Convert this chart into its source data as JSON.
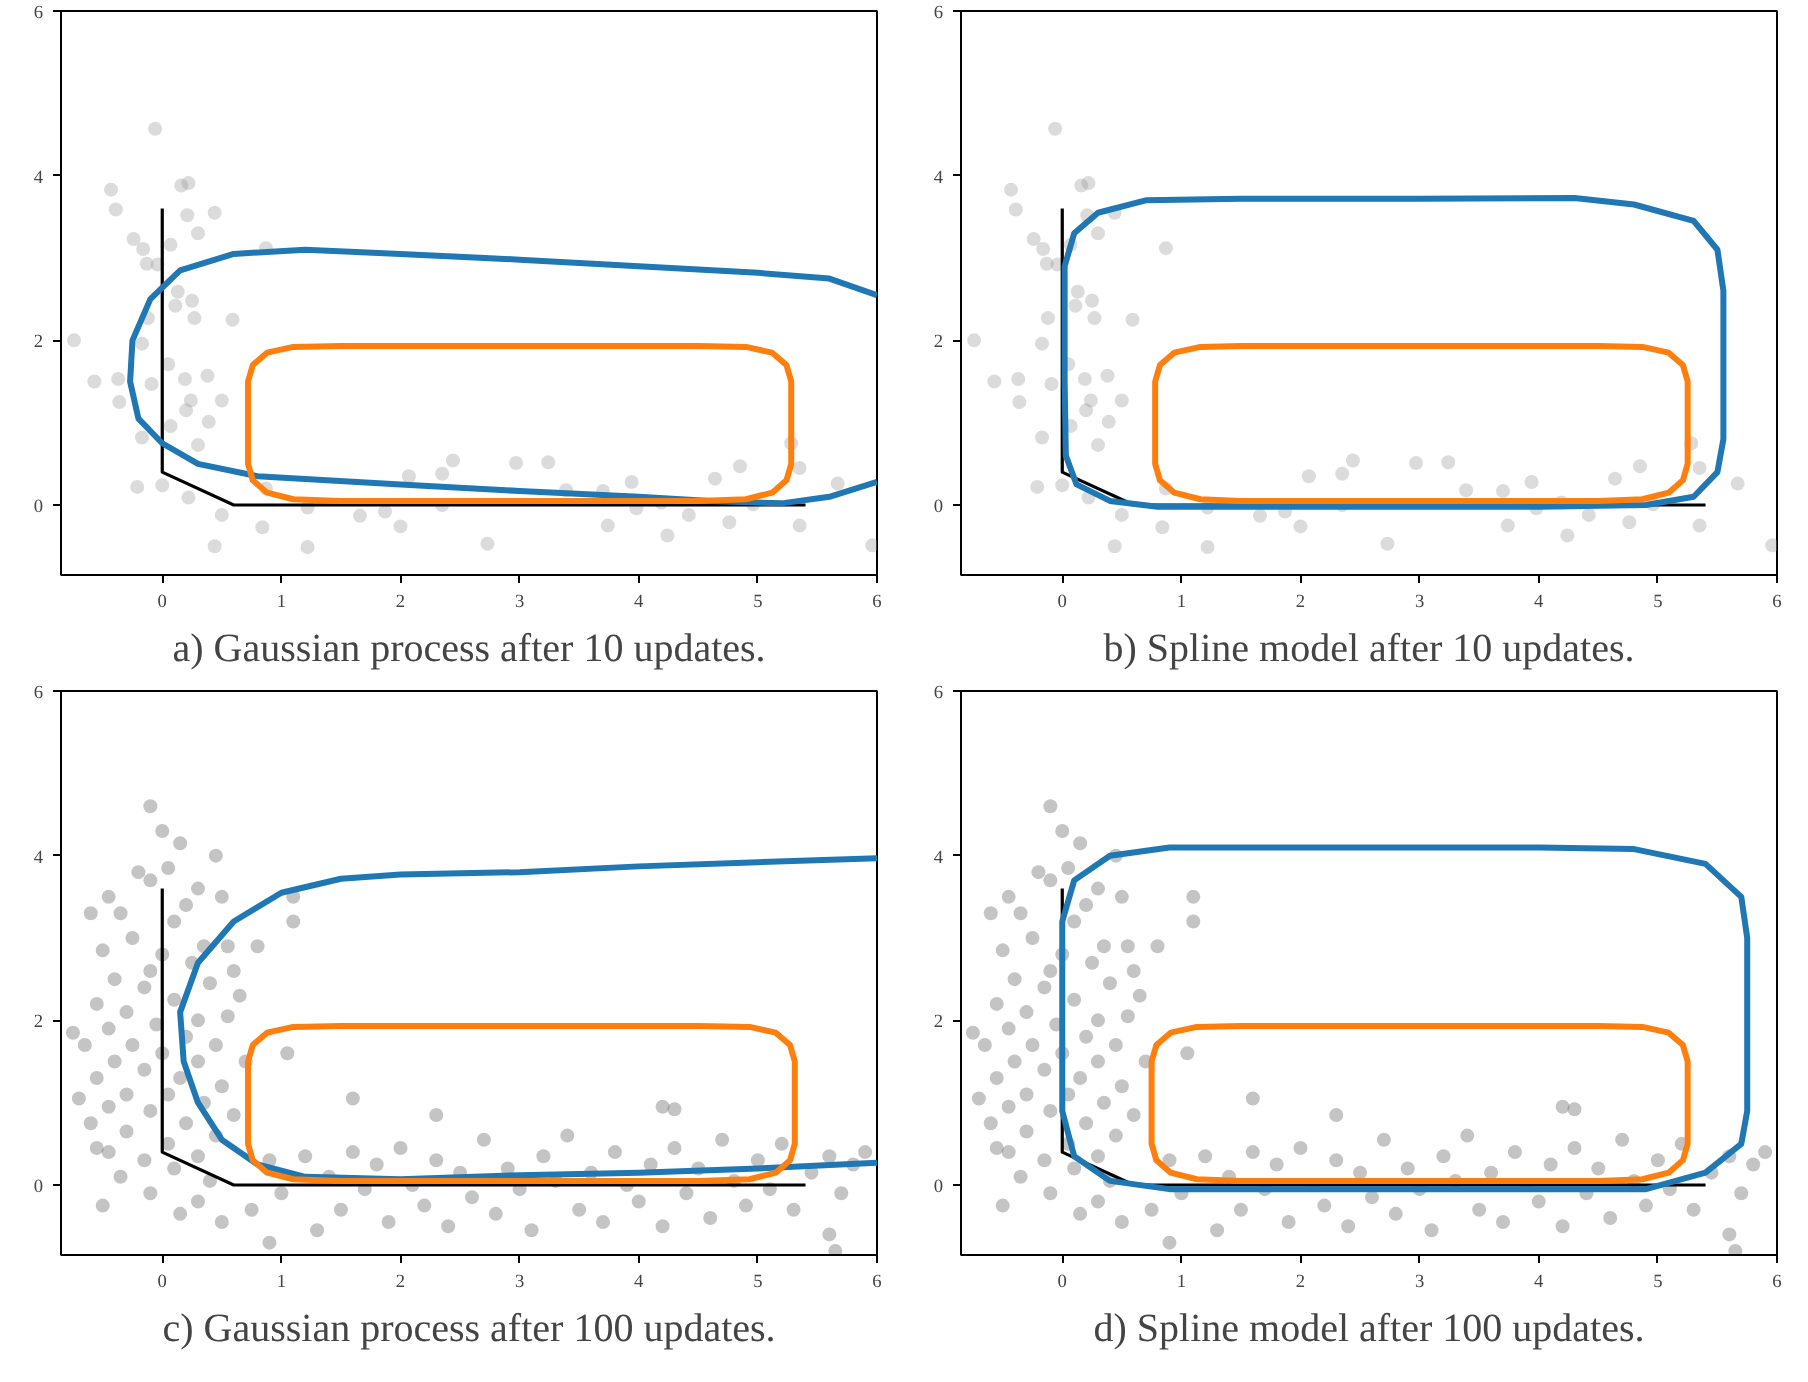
{
  "chart_data": [
    {
      "type": "scatter",
      "title": "a) Gaussian process after 10 updates.",
      "xlim": [
        -0.85,
        6
      ],
      "ylim": [
        -0.85,
        6
      ],
      "xticks": [
        0,
        1,
        2,
        3,
        4,
        5,
        6
      ],
      "yticks": [
        0,
        2,
        4,
        6
      ],
      "grid": false,
      "series": [
        {
          "type": "scatter",
          "color": "#999999",
          "marker": "circle",
          "x": [
            -0.06,
            -0.43,
            -0.39,
            0.22,
            0.16,
            0.44,
            0.21,
            0.3,
            -0.24,
            -0.16,
            0.07,
            -0.13,
            -0.04,
            0.87,
            0.13,
            0.25,
            0.27,
            0.59,
            -0.12,
            0.11,
            -0.74,
            -0.17,
            0.05,
            -0.57,
            -0.37,
            -0.09,
            0.19,
            0.38,
            -0.36,
            0.24,
            0.5,
            0.2,
            0.39,
            0.07,
            -0.17,
            0.3,
            -0.21,
            0.0,
            0.22,
            0.5,
            0.44,
            0.84,
            1.22,
            0.87,
            1.22,
            1.66,
            2.0,
            1.87,
            2.07,
            2.35,
            2.44,
            2.97,
            3.24,
            2.35,
            2.73,
            3.39,
            3.74,
            3.94,
            3.98,
            4.24,
            4.42,
            4.64,
            4.85,
            4.76,
            4.96,
            5.28,
            5.35,
            5.35,
            5.67,
            5.96,
            3.7,
            4.19
          ],
          "values": [
            4.57,
            3.83,
            3.59,
            3.91,
            3.88,
            3.55,
            3.52,
            3.3,
            3.23,
            3.11,
            3.16,
            2.93,
            2.92,
            3.12,
            2.59,
            2.48,
            2.27,
            2.25,
            2.27,
            2.42,
            2.0,
            1.96,
            1.71,
            1.5,
            1.53,
            1.47,
            1.53,
            1.57,
            1.25,
            1.27,
            1.27,
            1.15,
            1.01,
            0.96,
            0.82,
            0.73,
            0.22,
            0.24,
            0.09,
            -0.12,
            -0.5,
            -0.27,
            -0.51,
            0.2,
            -0.03,
            -0.13,
            -0.26,
            -0.08,
            0.35,
            0.38,
            0.54,
            0.51,
            0.52,
            0.0,
            -0.47,
            0.18,
            -0.25,
            0.28,
            -0.04,
            -0.37,
            -0.12,
            0.32,
            0.47,
            -0.21,
            0.01,
            0.75,
            0.45,
            -0.25,
            0.26,
            -0.49,
            0.17,
            0.03
          ]
        },
        {
          "type": "line",
          "color": "#000000",
          "line_style": "solid",
          "x": [
            0,
            0,
            0.6,
            5.4
          ],
          "values": [
            3.6,
            0.4,
            0,
            0
          ]
        },
        {
          "type": "line",
          "color": "#1f77b4",
          "line_style": "solid",
          "x": [
            6,
            5.6,
            5,
            4,
            3,
            2,
            1.2,
            0.6,
            0.15,
            -0.1,
            -0.25,
            -0.27,
            -0.2,
            0,
            0.3,
            0.8,
            2,
            3,
            4,
            4.6,
            5.2,
            5.6,
            6
          ],
          "values": [
            2.55,
            2.75,
            2.82,
            2.9,
            2.98,
            3.05,
            3.1,
            3.05,
            2.85,
            2.5,
            2.0,
            1.5,
            1.05,
            0.75,
            0.5,
            0.35,
            0.25,
            0.17,
            0.1,
            0.05,
            0.02,
            0.1,
            0.28
          ]
        }
      ]
    },
    {
      "type": "scatter",
      "title": "b) Spline model after 10 updates.",
      "xlim": [
        -0.85,
        6
      ],
      "ylim": [
        -0.85,
        6
      ],
      "xticks": [
        0,
        1,
        2,
        3,
        4,
        5,
        6
      ],
      "yticks": [
        0,
        2,
        4,
        6
      ],
      "grid": false,
      "series": [
        {
          "type": "scatter",
          "color": "#999999",
          "marker": "circle",
          "x": [
            -0.06,
            -0.43,
            -0.39,
            0.22,
            0.16,
            0.44,
            0.21,
            0.3,
            -0.24,
            -0.16,
            0.07,
            -0.13,
            -0.04,
            0.87,
            0.13,
            0.25,
            0.27,
            0.59,
            -0.12,
            0.11,
            -0.74,
            -0.17,
            0.05,
            -0.57,
            -0.37,
            -0.09,
            0.19,
            0.38,
            -0.36,
            0.24,
            0.5,
            0.2,
            0.39,
            0.07,
            -0.17,
            0.3,
            -0.21,
            0.0,
            0.22,
            0.5,
            0.44,
            0.84,
            1.22,
            0.87,
            1.22,
            1.66,
            2.0,
            1.87,
            2.07,
            2.35,
            2.44,
            2.97,
            3.24,
            2.35,
            2.73,
            3.39,
            3.74,
            3.94,
            3.98,
            4.24,
            4.42,
            4.64,
            4.85,
            4.76,
            4.96,
            5.28,
            5.35,
            5.35,
            5.67,
            5.96,
            3.7,
            4.19
          ],
          "values": [
            4.57,
            3.83,
            3.59,
            3.91,
            3.88,
            3.55,
            3.52,
            3.3,
            3.23,
            3.11,
            3.16,
            2.93,
            2.92,
            3.12,
            2.59,
            2.48,
            2.27,
            2.25,
            2.27,
            2.42,
            2.0,
            1.96,
            1.71,
            1.5,
            1.53,
            1.47,
            1.53,
            1.57,
            1.25,
            1.27,
            1.27,
            1.15,
            1.01,
            0.96,
            0.82,
            0.73,
            0.22,
            0.24,
            0.09,
            -0.12,
            -0.5,
            -0.27,
            -0.51,
            0.2,
            -0.03,
            -0.13,
            -0.26,
            -0.08,
            0.35,
            0.38,
            0.54,
            0.51,
            0.52,
            0.0,
            -0.47,
            0.18,
            -0.25,
            0.28,
            -0.04,
            -0.37,
            -0.12,
            0.32,
            0.47,
            -0.21,
            0.01,
            0.75,
            0.45,
            -0.25,
            0.26,
            -0.49,
            0.17,
            0.03
          ]
        },
        {
          "type": "line",
          "color": "#000000",
          "line_style": "solid",
          "x": [
            0,
            0,
            0.6,
            5.4
          ],
          "values": [
            3.6,
            0.4,
            0,
            0
          ]
        }
      ]
    },
    {
      "type": "scatter",
      "title": "c) Gaussian process after 100 updates.",
      "xlim": [
        -0.85,
        6
      ],
      "ylim": [
        -0.85,
        6
      ],
      "xticks": [
        0,
        1,
        2,
        3,
        4,
        5,
        6
      ],
      "yticks": [
        0,
        2,
        4,
        6
      ],
      "grid": false,
      "series": [
        {
          "type": "scatter",
          "color": "#555555",
          "marker": "circle",
          "x": [
            -0.1,
            0.0,
            0.15,
            -0.75,
            -0.7,
            -0.55,
            -0.5,
            1.1,
            1.1,
            0.8,
            1.05,
            1.6,
            2.3,
            4.2,
            4.3,
            0.9,
            5.6,
            5.65,
            -0.2,
            -0.1,
            0.05,
            0.3,
            0.45,
            -0.45,
            -0.35,
            0.2,
            0.5,
            -0.6,
            0.1,
            -0.25,
            0.35,
            0.55,
            -0.5,
            0.0,
            -0.1,
            0.25,
            0.6,
            -0.4,
            -0.15,
            0.4,
            0.65,
            -0.55,
            0.1,
            -0.3,
            0.3,
            0.55,
            -0.45,
            -0.05,
            0.2,
            -0.65,
            -0.25,
            0.45,
            0.0,
            -0.4,
            0.3,
            0.7,
            -0.15,
            -0.55,
            0.15,
            0.5,
            -0.3,
            0.05,
            -0.45,
            0.35,
            -0.1,
            0.6,
            -0.6,
            0.2,
            -0.3,
            0.45,
            0.05,
            -0.45,
            0.3,
            -0.15,
            0.1,
            -0.35,
            0.4,
            -0.1,
            0.3,
            0.5,
            0.75,
            0.15,
            0.9,
            1.0,
            1.2,
            1.3,
            1.4,
            1.5,
            1.6,
            1.7,
            1.8,
            1.9,
            2.0,
            2.1,
            2.2,
            2.3,
            2.4,
            2.5,
            2.6,
            2.7,
            2.8,
            2.9,
            3.0,
            3.1,
            3.2,
            3.3,
            3.4,
            3.5,
            3.6,
            3.7,
            3.8,
            3.9,
            4.0,
            4.1,
            4.2,
            4.3,
            4.4,
            4.5,
            4.6,
            4.7,
            4.8,
            4.9,
            5.0,
            5.1,
            5.2,
            5.3,
            5.45,
            5.6,
            5.7,
            5.8,
            5.9
          ],
          "values": [
            4.6,
            4.3,
            4.15,
            1.85,
            1.05,
            0.45,
            -0.25,
            3.5,
            3.2,
            2.9,
            1.6,
            1.05,
            0.85,
            0.95,
            0.92,
            -0.7,
            -0.6,
            -0.8,
            3.8,
            3.7,
            3.85,
            3.6,
            4.0,
            3.5,
            3.3,
            3.4,
            3.5,
            3.3,
            3.2,
            3.0,
            2.9,
            2.9,
            2.85,
            2.8,
            2.6,
            2.7,
            2.6,
            2.5,
            2.4,
            2.45,
            2.3,
            2.2,
            2.25,
            2.1,
            2.0,
            2.05,
            1.9,
            1.95,
            1.8,
            1.7,
            1.7,
            1.7,
            1.6,
            1.5,
            1.5,
            1.5,
            1.4,
            1.3,
            1.3,
            1.2,
            1.1,
            1.1,
            0.95,
            1.0,
            0.9,
            0.85,
            0.75,
            0.75,
            0.65,
            0.6,
            0.5,
            0.4,
            0.35,
            0.3,
            0.2,
            0.1,
            0.05,
            -0.1,
            -0.2,
            -0.45,
            -0.3,
            -0.35,
            0.3,
            -0.1,
            0.35,
            -0.55,
            0.1,
            -0.3,
            0.4,
            -0.05,
            0.25,
            -0.45,
            0.45,
            0.0,
            -0.25,
            0.3,
            -0.5,
            0.15,
            -0.15,
            0.55,
            -0.35,
            0.2,
            -0.05,
            -0.55,
            0.35,
            0.05,
            0.6,
            -0.3,
            0.15,
            -0.45,
            0.4,
            0.0,
            -0.2,
            0.25,
            -0.5,
            0.45,
            -0.1,
            0.2,
            -0.4,
            0.55,
            0.05,
            -0.25,
            0.3,
            -0.05,
            0.5,
            -0.3,
            0.15,
            0.35,
            -0.1,
            0.25,
            0.4
          ]
        },
        {
          "type": "line",
          "color": "#000000",
          "line_style": "solid",
          "x": [
            0,
            0,
            0.6,
            5.4
          ],
          "values": [
            3.6,
            0.4,
            0,
            0
          ]
        },
        {
          "type": "line",
          "color": "#1f77b4",
          "line_style": "solid",
          "x": [
            6,
            5,
            4,
            3,
            2,
            1.5,
            1,
            0.6,
            0.3,
            0.15,
            0.18,
            0.3,
            0.5,
            0.8,
            1.2,
            2,
            3,
            4,
            5,
            6
          ],
          "values": [
            3.97,
            3.92,
            3.87,
            3.8,
            3.77,
            3.72,
            3.55,
            3.2,
            2.7,
            2.1,
            1.5,
            1.0,
            0.55,
            0.25,
            0.1,
            0.07,
            0.12,
            0.15,
            0.2,
            0.27
          ]
        }
      ]
    },
    {
      "type": "scatter",
      "title": "d) Spline model after 100 updates.",
      "xlim": [
        -0.85,
        6
      ],
      "ylim": [
        -0.85,
        6
      ],
      "xticks": [
        0,
        1,
        2,
        3,
        4,
        5,
        6
      ],
      "yticks": [
        0,
        2,
        4,
        6
      ],
      "grid": false,
      "series": [
        {
          "type": "scatter",
          "color": "#555555",
          "marker": "circle",
          "x": [
            -0.1,
            0.0,
            0.15,
            -0.75,
            -0.7,
            -0.55,
            -0.5,
            1.1,
            1.1,
            0.8,
            1.05,
            1.6,
            2.3,
            4.2,
            4.3,
            0.9,
            5.6,
            5.65,
            -0.2,
            -0.1,
            0.05,
            0.3,
            0.45,
            -0.45,
            -0.35,
            0.2,
            0.5,
            -0.6,
            0.1,
            -0.25,
            0.35,
            0.55,
            -0.5,
            0.0,
            -0.1,
            0.25,
            0.6,
            -0.4,
            -0.15,
            0.4,
            0.65,
            -0.55,
            0.1,
            -0.3,
            0.3,
            0.55,
            -0.45,
            -0.05,
            0.2,
            -0.65,
            -0.25,
            0.45,
            0.0,
            -0.4,
            0.3,
            0.7,
            -0.15,
            -0.55,
            0.15,
            0.5,
            -0.3,
            0.05,
            -0.45,
            0.35,
            -0.1,
            0.6,
            -0.6,
            0.2,
            -0.3,
            0.45,
            0.05,
            -0.45,
            0.3,
            -0.15,
            0.1,
            -0.35,
            0.4,
            -0.1,
            0.3,
            0.5,
            0.75,
            0.15,
            0.9,
            1.0,
            1.2,
            1.3,
            1.4,
            1.5,
            1.6,
            1.7,
            1.8,
            1.9,
            2.0,
            2.1,
            2.2,
            2.3,
            2.4,
            2.5,
            2.6,
            2.7,
            2.8,
            2.9,
            3.0,
            3.1,
            3.2,
            3.3,
            3.4,
            3.5,
            3.6,
            3.7,
            3.8,
            3.9,
            4.0,
            4.1,
            4.2,
            4.3,
            4.4,
            4.5,
            4.6,
            4.7,
            4.8,
            4.9,
            5.0,
            5.1,
            5.2,
            5.3,
            5.45,
            5.6,
            5.7,
            5.8,
            5.9
          ],
          "values": [
            4.6,
            4.3,
            4.15,
            1.85,
            1.05,
            0.45,
            -0.25,
            3.5,
            3.2,
            2.9,
            1.6,
            1.05,
            0.85,
            0.95,
            0.92,
            -0.7,
            -0.6,
            -0.8,
            3.8,
            3.7,
            3.85,
            3.6,
            4.0,
            3.5,
            3.3,
            3.4,
            3.5,
            3.3,
            3.2,
            3.0,
            2.9,
            2.9,
            2.85,
            2.8,
            2.6,
            2.7,
            2.6,
            2.5,
            2.4,
            2.45,
            2.3,
            2.2,
            2.25,
            2.1,
            2.0,
            2.05,
            1.9,
            1.95,
            1.8,
            1.7,
            1.7,
            1.7,
            1.6,
            1.5,
            1.5,
            1.5,
            1.4,
            1.3,
            1.3,
            1.2,
            1.1,
            1.1,
            0.95,
            1.0,
            0.9,
            0.85,
            0.75,
            0.75,
            0.65,
            0.6,
            0.5,
            0.4,
            0.35,
            0.3,
            0.2,
            0.1,
            0.05,
            -0.1,
            -0.2,
            -0.45,
            -0.3,
            -0.35,
            0.3,
            -0.1,
            0.35,
            -0.55,
            0.1,
            -0.3,
            0.4,
            -0.05,
            0.25,
            -0.45,
            0.45,
            0.0,
            -0.25,
            0.3,
            -0.5,
            0.15,
            -0.15,
            0.55,
            -0.35,
            0.2,
            -0.05,
            -0.55,
            0.35,
            0.05,
            0.6,
            -0.3,
            0.15,
            -0.45,
            0.4,
            0.0,
            -0.2,
            0.25,
            -0.5,
            0.45,
            -0.1,
            0.2,
            -0.4,
            0.55,
            0.05,
            -0.25,
            0.3,
            -0.05,
            0.5,
            -0.3,
            0.15,
            0.35,
            -0.1,
            0.25,
            0.4
          ]
        },
        {
          "type": "line",
          "color": "#000000",
          "line_style": "solid",
          "x": [
            0,
            0,
            0.6,
            5.4
          ],
          "values": [
            3.6,
            0.4,
            0,
            0
          ]
        }
      ]
    }
  ]
}
